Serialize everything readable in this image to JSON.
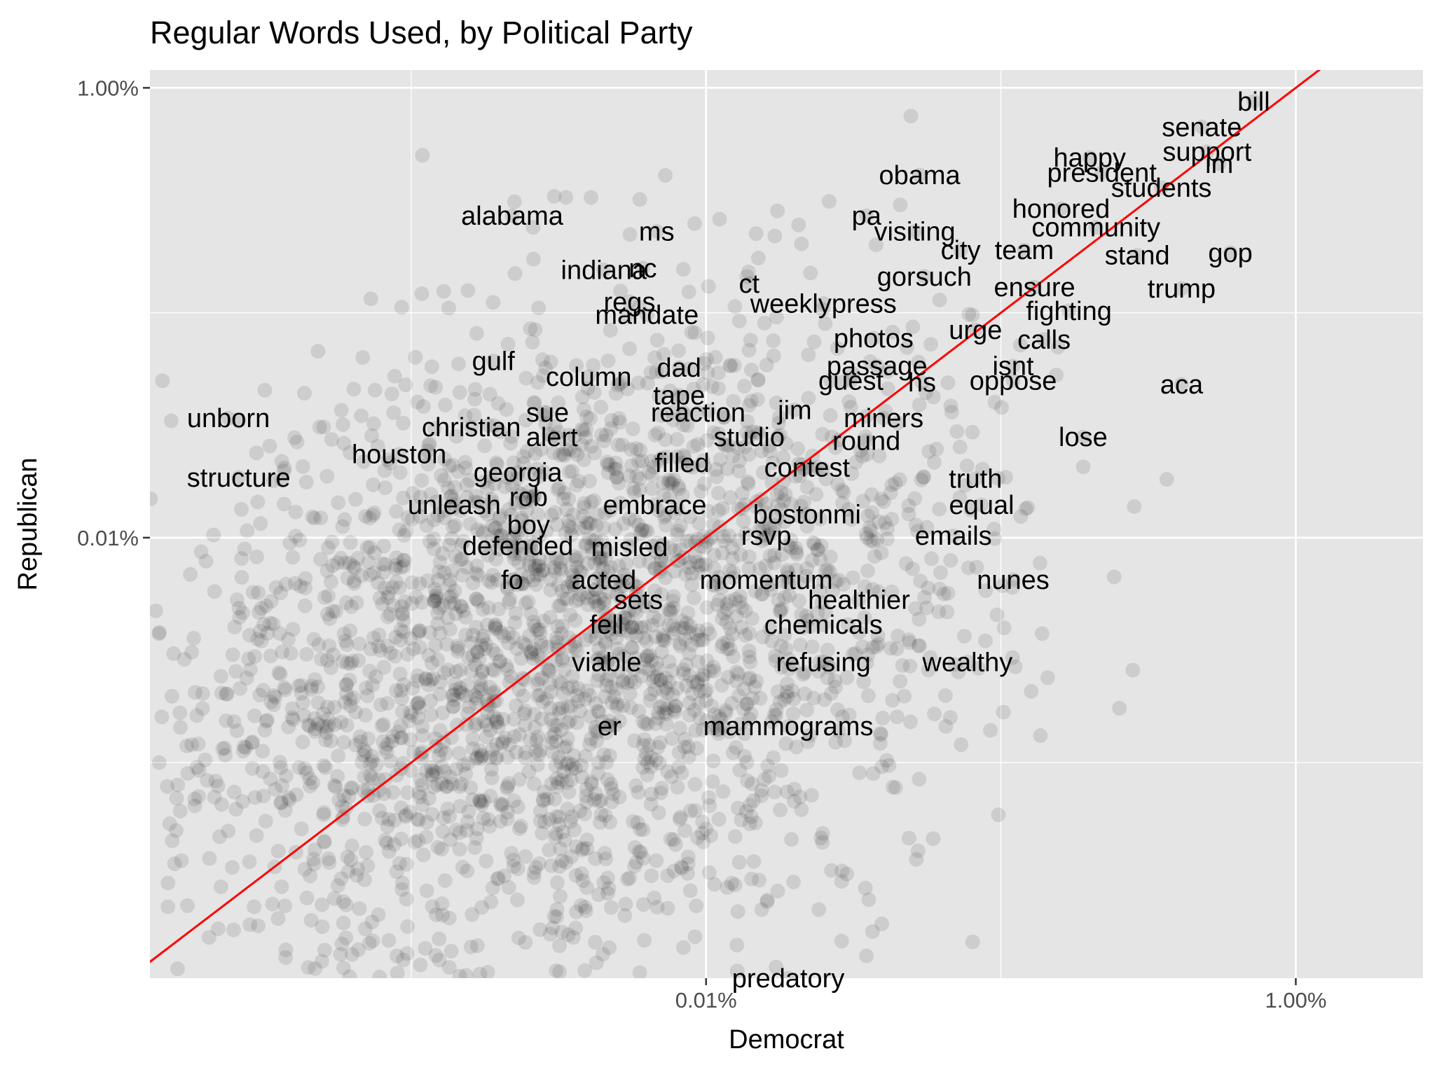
{
  "chart_data": {
    "type": "scatter",
    "title": "Regular Words Used, by Political Party",
    "xlabel": "Democrat",
    "ylabel": "Republican",
    "scale": "log10",
    "units": "percent of words",
    "xlim": [
      0.00013,
      2.7
    ],
    "ylim": [
      0.00011,
      1.2
    ],
    "x_ticks": [
      {
        "value": 0.01,
        "label": "0.01%"
      },
      {
        "value": 1.0,
        "label": "1.00%"
      }
    ],
    "y_ticks": [
      {
        "value": 0.01,
        "label": "0.01%"
      },
      {
        "value": 1.0,
        "label": "1.00%"
      }
    ],
    "minor_gridlines": [
      0.001,
      0.1
    ],
    "grid": true,
    "reference_line": {
      "type": "y=x",
      "color": "#ff0000"
    },
    "colors": {
      "panel": "#e5e5e5",
      "grid": "#ffffff",
      "points": "#000000",
      "reference_line": "#ff0000",
      "ticks": "#333333"
    },
    "words": [
      {
        "word": "bill",
        "x": 0.72,
        "y": 0.87
      },
      {
        "word": "senate",
        "x": 0.48,
        "y": 0.67
      },
      {
        "word": "support",
        "x": 0.5,
        "y": 0.52
      },
      {
        "word": "im",
        "x": 0.55,
        "y": 0.46
      },
      {
        "word": "happy",
        "x": 0.2,
        "y": 0.49
      },
      {
        "word": "president",
        "x": 0.22,
        "y": 0.42
      },
      {
        "word": "students",
        "x": 0.35,
        "y": 0.36
      },
      {
        "word": "obama",
        "x": 0.053,
        "y": 0.41
      },
      {
        "word": "honored",
        "x": 0.16,
        "y": 0.29
      },
      {
        "word": "alabama",
        "x": 0.0022,
        "y": 0.27
      },
      {
        "word": "pa",
        "x": 0.035,
        "y": 0.27
      },
      {
        "word": "community",
        "x": 0.21,
        "y": 0.24
      },
      {
        "word": "ms",
        "x": 0.0068,
        "y": 0.23
      },
      {
        "word": "visiting",
        "x": 0.051,
        "y": 0.23
      },
      {
        "word": "city",
        "x": 0.073,
        "y": 0.19
      },
      {
        "word": "team",
        "x": 0.12,
        "y": 0.19
      },
      {
        "word": "stand",
        "x": 0.29,
        "y": 0.18
      },
      {
        "word": "gop",
        "x": 0.6,
        "y": 0.185
      },
      {
        "word": "indiana",
        "x": 0.0045,
        "y": 0.155
      },
      {
        "word": "nc",
        "x": 0.0061,
        "y": 0.158
      },
      {
        "word": "gorsuch",
        "x": 0.055,
        "y": 0.145
      },
      {
        "word": "ct",
        "x": 0.014,
        "y": 0.135
      },
      {
        "word": "ensure",
        "x": 0.13,
        "y": 0.13
      },
      {
        "word": "trump",
        "x": 0.41,
        "y": 0.128
      },
      {
        "word": "regs",
        "x": 0.0055,
        "y": 0.112
      },
      {
        "word": "weeklypress",
        "x": 0.025,
        "y": 0.11
      },
      {
        "word": "fighting",
        "x": 0.17,
        "y": 0.102
      },
      {
        "word": "mandate",
        "x": 0.0063,
        "y": 0.098
      },
      {
        "word": "urge",
        "x": 0.082,
        "y": 0.084
      },
      {
        "word": "photos",
        "x": 0.037,
        "y": 0.077
      },
      {
        "word": "calls",
        "x": 0.14,
        "y": 0.076
      },
      {
        "word": "gulf",
        "x": 0.0019,
        "y": 0.061
      },
      {
        "word": "dad",
        "x": 0.0081,
        "y": 0.057
      },
      {
        "word": "passage",
        "x": 0.038,
        "y": 0.058
      },
      {
        "word": "isnt",
        "x": 0.11,
        "y": 0.058
      },
      {
        "word": "column",
        "x": 0.004,
        "y": 0.052
      },
      {
        "word": "guest",
        "x": 0.031,
        "y": 0.05
      },
      {
        "word": "hs",
        "x": 0.054,
        "y": 0.049
      },
      {
        "word": "oppose",
        "x": 0.11,
        "y": 0.05
      },
      {
        "word": "aca",
        "x": 0.41,
        "y": 0.048
      },
      {
        "word": "tape",
        "x": 0.0081,
        "y": 0.043
      },
      {
        "word": "unborn",
        "x": 0.00024,
        "y": 0.034
      },
      {
        "word": "sue",
        "x": 0.0029,
        "y": 0.036
      },
      {
        "word": "reaction",
        "x": 0.0094,
        "y": 0.036
      },
      {
        "word": "jim",
        "x": 0.02,
        "y": 0.037
      },
      {
        "word": "miners",
        "x": 0.04,
        "y": 0.034
      },
      {
        "word": "christian",
        "x": 0.0016,
        "y": 0.031
      },
      {
        "word": "alert",
        "x": 0.003,
        "y": 0.028
      },
      {
        "word": "studio",
        "x": 0.014,
        "y": 0.028
      },
      {
        "word": "round",
        "x": 0.035,
        "y": 0.027
      },
      {
        "word": "lose",
        "x": 0.19,
        "y": 0.028
      },
      {
        "word": "houston",
        "x": 0.00091,
        "y": 0.0235
      },
      {
        "word": "filled",
        "x": 0.0083,
        "y": 0.0215
      },
      {
        "word": "contest",
        "x": 0.022,
        "y": 0.0205
      },
      {
        "word": "georgia",
        "x": 0.0023,
        "y": 0.0195
      },
      {
        "word": "structure",
        "x": 0.00026,
        "y": 0.0185
      },
      {
        "word": "truth",
        "x": 0.082,
        "y": 0.0183
      },
      {
        "word": "rob",
        "x": 0.0025,
        "y": 0.0152
      },
      {
        "word": "unleash",
        "x": 0.0014,
        "y": 0.014
      },
      {
        "word": "embrace",
        "x": 0.0067,
        "y": 0.014
      },
      {
        "word": "equal",
        "x": 0.086,
        "y": 0.014
      },
      {
        "word": "bostonmi",
        "x": 0.022,
        "y": 0.0127
      },
      {
        "word": "boy",
        "x": 0.0025,
        "y": 0.0114
      },
      {
        "word": "rsvp",
        "x": 0.016,
        "y": 0.0102
      },
      {
        "word": "emails",
        "x": 0.069,
        "y": 0.0102
      },
      {
        "word": "defended",
        "x": 0.0023,
        "y": 0.0092
      },
      {
        "word": "misled",
        "x": 0.0055,
        "y": 0.0091
      },
      {
        "word": "fo",
        "x": 0.0022,
        "y": 0.0065
      },
      {
        "word": "acted",
        "x": 0.0045,
        "y": 0.0065
      },
      {
        "word": "momentum",
        "x": 0.016,
        "y": 0.0065
      },
      {
        "word": "nunes",
        "x": 0.11,
        "y": 0.0065
      },
      {
        "word": "sets",
        "x": 0.0059,
        "y": 0.0053
      },
      {
        "word": "healthier",
        "x": 0.033,
        "y": 0.0053
      },
      {
        "word": "fell",
        "x": 0.0046,
        "y": 0.0041
      },
      {
        "word": "chemicals",
        "x": 0.025,
        "y": 0.0041
      },
      {
        "word": "viable",
        "x": 0.0046,
        "y": 0.0028
      },
      {
        "word": "refusing",
        "x": 0.025,
        "y": 0.0028
      },
      {
        "word": "wealthy",
        "x": 0.077,
        "y": 0.0028
      },
      {
        "word": "er",
        "x": 0.0047,
        "y": 0.00145
      },
      {
        "word": "mammograms",
        "x": 0.019,
        "y": 0.00145
      },
      {
        "word": "predatory",
        "x": 0.019,
        "y": 0.00011
      }
    ]
  }
}
